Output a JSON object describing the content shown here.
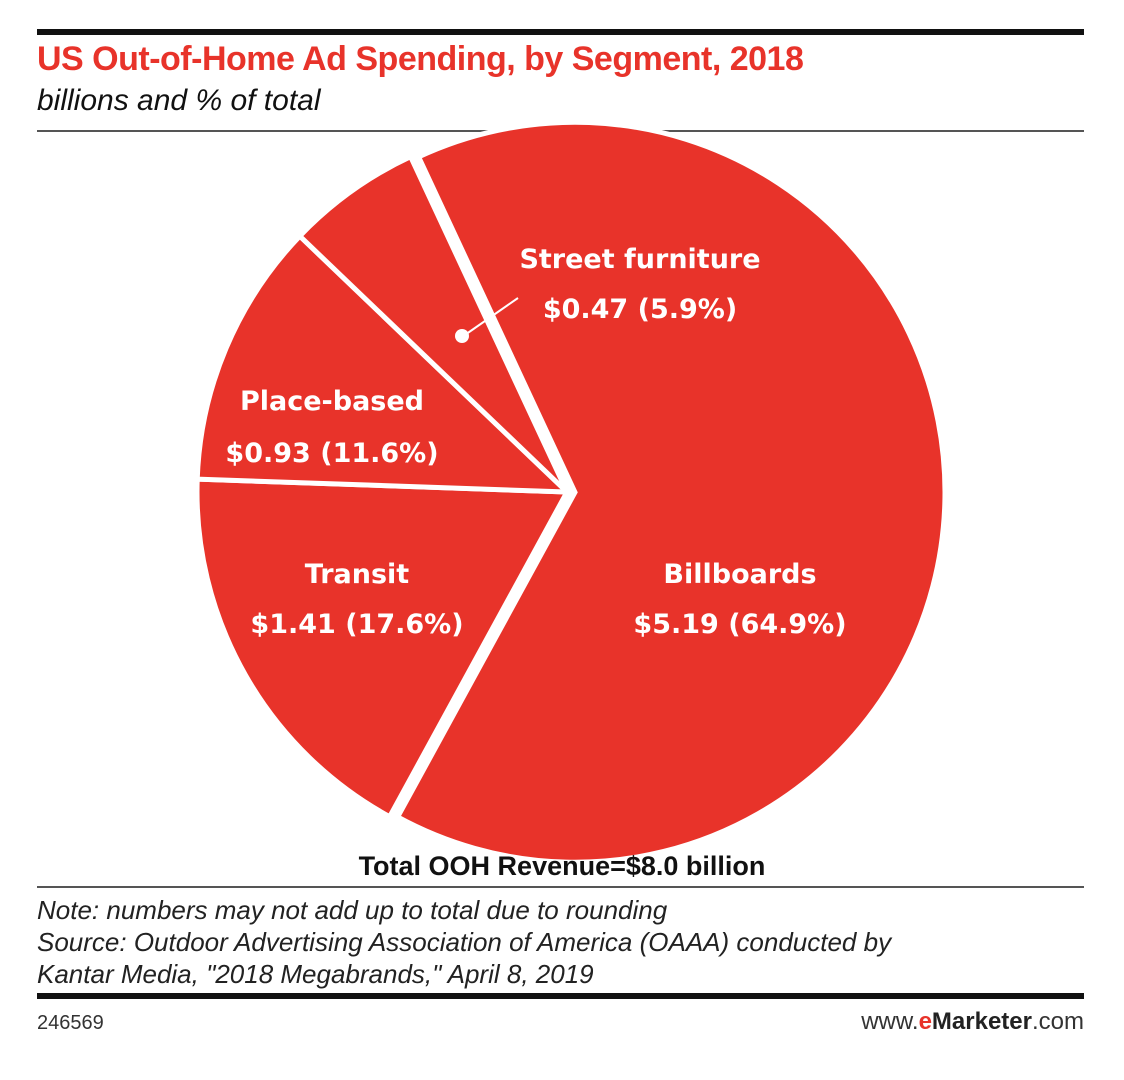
{
  "chart_data": {
    "type": "pie",
    "title": "US Out-of-Home Ad Spending, by Segment, 2018",
    "subtitle": "billions and % of total",
    "units": "billions",
    "slices": [
      {
        "name": "Billboards",
        "value": 5.19,
        "percent": 64.9,
        "value_label": "$5.19 (64.9%)"
      },
      {
        "name": "Transit",
        "value": 1.41,
        "percent": 17.6,
        "value_label": "$1.41 (17.6%)"
      },
      {
        "name": "Place-based",
        "value": 0.93,
        "percent": 11.6,
        "value_label": "$0.93 (11.6%)"
      },
      {
        "name": "Street furniture",
        "value": 0.47,
        "percent": 5.9,
        "value_label": "$0.47 (5.9%)"
      }
    ],
    "total_label": "Total OOH Revenue=$8.0 billion",
    "slice_color": "#e8332a",
    "separator_color": "#ffffff"
  },
  "footer": {
    "note": "Note: numbers may not add up to total due to rounding",
    "source_line1": "Source: Outdoor Advertising Association of America (OAAA) conducted by",
    "source_line2": "Kantar Media, \"2018 Megabrands,\" April 8, 2019",
    "chart_id": "246569",
    "brand_prefix": "www.",
    "brand_e": "e",
    "brand_name": "Marketer",
    "brand_suffix": ".com"
  }
}
